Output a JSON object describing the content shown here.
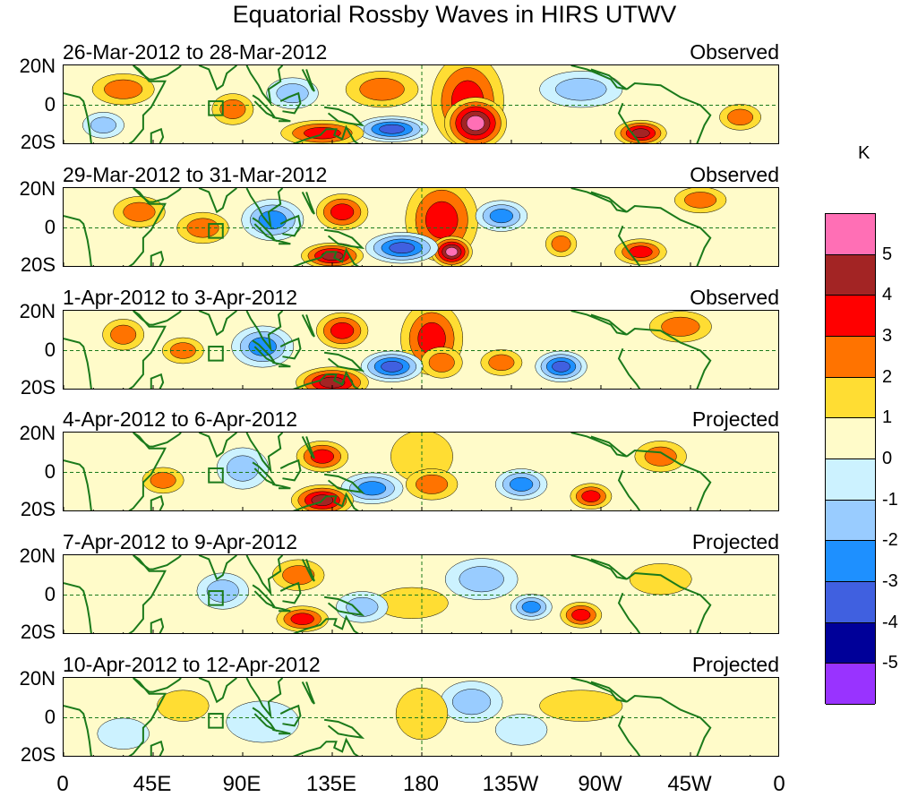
{
  "title": "Equatorial Rossby Waves in HIRS UTWV",
  "panels": [
    {
      "date_range": "26-Mar-2012 to 28-Mar-2012",
      "status": "Observed",
      "blobs": [
        {
          "lon": 203,
          "lat": 2,
          "rx": 14,
          "ry": 18,
          "level": 3
        },
        {
          "lon": 207,
          "lat": -9,
          "rx": 12,
          "ry": 10,
          "level": 5
        },
        {
          "lon": 165,
          "lat": -12,
          "rx": 14,
          "ry": 5,
          "level": -4
        },
        {
          "lon": 130,
          "lat": -14,
          "rx": 16,
          "ry": 5,
          "level": 3
        },
        {
          "lon": 160,
          "lat": 8,
          "rx": 14,
          "ry": 7,
          "level": 2
        },
        {
          "lon": 30,
          "lat": 8,
          "rx": 12,
          "ry": 6,
          "level": 2
        },
        {
          "lon": 85,
          "lat": -2,
          "rx": 8,
          "ry": 6,
          "level": 2
        },
        {
          "lon": 115,
          "lat": 6,
          "rx": 10,
          "ry": 6,
          "level": -2
        },
        {
          "lon": 20,
          "lat": -10,
          "rx": 8,
          "ry": 5,
          "level": -2
        },
        {
          "lon": 290,
          "lat": -14,
          "rx": 10,
          "ry": 5,
          "level": 4
        },
        {
          "lon": 260,
          "lat": 8,
          "rx": 16,
          "ry": 7,
          "level": -2
        },
        {
          "lon": 340,
          "lat": -6,
          "rx": 8,
          "ry": 5,
          "level": 2
        }
      ]
    },
    {
      "date_range": "29-Mar-2012 to 31-Mar-2012",
      "status": "Observed",
      "blobs": [
        {
          "lon": 190,
          "lat": 4,
          "rx": 14,
          "ry": 16,
          "level": 3
        },
        {
          "lon": 195,
          "lat": -12,
          "rx": 8,
          "ry": 6,
          "level": 5
        },
        {
          "lon": 170,
          "lat": -10,
          "rx": 14,
          "ry": 6,
          "level": -4
        },
        {
          "lon": 135,
          "lat": -14,
          "rx": 12,
          "ry": 5,
          "level": 4
        },
        {
          "lon": 140,
          "lat": 8,
          "rx": 10,
          "ry": 7,
          "level": 3
        },
        {
          "lon": 38,
          "lat": 8,
          "rx": 10,
          "ry": 6,
          "level": 2
        },
        {
          "lon": 70,
          "lat": 0,
          "rx": 10,
          "ry": 6,
          "level": 2
        },
        {
          "lon": 105,
          "lat": 4,
          "rx": 12,
          "ry": 8,
          "level": -3
        },
        {
          "lon": 220,
          "lat": 6,
          "rx": 10,
          "ry": 6,
          "level": -3
        },
        {
          "lon": 250,
          "lat": -8,
          "rx": 6,
          "ry": 5,
          "level": 2
        },
        {
          "lon": 290,
          "lat": -12,
          "rx": 10,
          "ry": 5,
          "level": 3
        },
        {
          "lon": 320,
          "lat": 14,
          "rx": 10,
          "ry": 5,
          "level": 2
        }
      ]
    },
    {
      "date_range": "1-Apr-2012 to 3-Apr-2012",
      "status": "Observed",
      "blobs": [
        {
          "lon": 185,
          "lat": 6,
          "rx": 12,
          "ry": 14,
          "level": 3
        },
        {
          "lon": 190,
          "lat": -6,
          "rx": 8,
          "ry": 6,
          "level": 2
        },
        {
          "lon": 165,
          "lat": -8,
          "rx": 12,
          "ry": 6,
          "level": -4
        },
        {
          "lon": 135,
          "lat": -16,
          "rx": 14,
          "ry": 6,
          "level": 4
        },
        {
          "lon": 140,
          "lat": 10,
          "rx": 10,
          "ry": 7,
          "level": 3
        },
        {
          "lon": 30,
          "lat": 8,
          "rx": 8,
          "ry": 6,
          "level": 2
        },
        {
          "lon": 60,
          "lat": 0,
          "rx": 8,
          "ry": 5,
          "level": 2
        },
        {
          "lon": 100,
          "lat": 2,
          "rx": 12,
          "ry": 8,
          "level": -3
        },
        {
          "lon": 250,
          "lat": -8,
          "rx": 10,
          "ry": 6,
          "level": -4
        },
        {
          "lon": 220,
          "lat": -6,
          "rx": 8,
          "ry": 5,
          "level": 2
        },
        {
          "lon": 310,
          "lat": 12,
          "rx": 12,
          "ry": 6,
          "level": 2
        }
      ]
    },
    {
      "date_range": "4-Apr-2012 to 6-Apr-2012",
      "status": "Projected",
      "blobs": [
        {
          "lon": 180,
          "lat": 8,
          "rx": 12,
          "ry": 10,
          "level": 1
        },
        {
          "lon": 185,
          "lat": -6,
          "rx": 10,
          "ry": 6,
          "level": 2
        },
        {
          "lon": 155,
          "lat": -8,
          "rx": 12,
          "ry": 6,
          "level": -3
        },
        {
          "lon": 130,
          "lat": -14,
          "rx": 12,
          "ry": 6,
          "level": 4
        },
        {
          "lon": 130,
          "lat": 8,
          "rx": 10,
          "ry": 6,
          "level": 3
        },
        {
          "lon": 50,
          "lat": -4,
          "rx": 8,
          "ry": 5,
          "level": 2
        },
        {
          "lon": 90,
          "lat": 2,
          "rx": 10,
          "ry": 8,
          "level": -2
        },
        {
          "lon": 230,
          "lat": -6,
          "rx": 10,
          "ry": 6,
          "level": -3
        },
        {
          "lon": 265,
          "lat": -12,
          "rx": 8,
          "ry": 5,
          "level": 3
        },
        {
          "lon": 300,
          "lat": 8,
          "rx": 10,
          "ry": 6,
          "level": 2
        }
      ]
    },
    {
      "date_range": "7-Apr-2012 to 9-Apr-2012",
      "status": "Projected",
      "blobs": [
        {
          "lon": 210,
          "lat": 8,
          "rx": 14,
          "ry": 8,
          "level": -2
        },
        {
          "lon": 175,
          "lat": -4,
          "rx": 14,
          "ry": 6,
          "level": 1
        },
        {
          "lon": 150,
          "lat": -6,
          "rx": 10,
          "ry": 6,
          "level": -2
        },
        {
          "lon": 120,
          "lat": -12,
          "rx": 10,
          "ry": 5,
          "level": 3
        },
        {
          "lon": 118,
          "lat": 10,
          "rx": 10,
          "ry": 6,
          "level": 2
        },
        {
          "lon": 80,
          "lat": 2,
          "rx": 10,
          "ry": 7,
          "level": -2
        },
        {
          "lon": 235,
          "lat": -6,
          "rx": 8,
          "ry": 5,
          "level": -3
        },
        {
          "lon": 260,
          "lat": -10,
          "rx": 8,
          "ry": 5,
          "level": 3
        },
        {
          "lon": 300,
          "lat": 8,
          "rx": 12,
          "ry": 6,
          "level": 1
        }
      ]
    },
    {
      "date_range": "10-Apr-2012 to 12-Apr-2012",
      "status": "Projected",
      "blobs": [
        {
          "lon": 205,
          "lat": 8,
          "rx": 12,
          "ry": 8,
          "level": -2
        },
        {
          "lon": 180,
          "lat": 2,
          "rx": 10,
          "ry": 10,
          "level": 1
        },
        {
          "lon": 230,
          "lat": -6,
          "rx": 10,
          "ry": 6,
          "level": -1
        },
        {
          "lon": 260,
          "lat": 6,
          "rx": 16,
          "ry": 6,
          "level": 1
        },
        {
          "lon": 100,
          "lat": -2,
          "rx": 14,
          "ry": 8,
          "level": -1
        },
        {
          "lon": 60,
          "lat": 6,
          "rx": 10,
          "ry": 6,
          "level": 1
        },
        {
          "lon": 30,
          "lat": -8,
          "rx": 10,
          "ry": 6,
          "level": -1
        }
      ]
    }
  ],
  "lat_labels": [
    "20N",
    "0",
    "20S"
  ],
  "lon_labels": [
    "0",
    "45E",
    "90E",
    "135E",
    "180",
    "135W",
    "90W",
    "45W",
    "0"
  ],
  "colorbar": {
    "unit": "K",
    "levels": [
      5,
      4,
      3,
      2,
      1,
      0,
      -1,
      -2,
      -3,
      -4,
      -5
    ],
    "level_labels": [
      "5",
      "4",
      "3",
      "2",
      "1",
      "0",
      "-1",
      "-2",
      "-3",
      "-4",
      "-5"
    ],
    "colors": [
      "#ff6fb5",
      "#a32424",
      "#ff0000",
      "#ff7300",
      "#ffdd33",
      "#fffbc9",
      "#ccf2ff",
      "#99ccff",
      "#1e90ff",
      "#4060e0",
      "#000099",
      "#9933ff"
    ]
  }
}
